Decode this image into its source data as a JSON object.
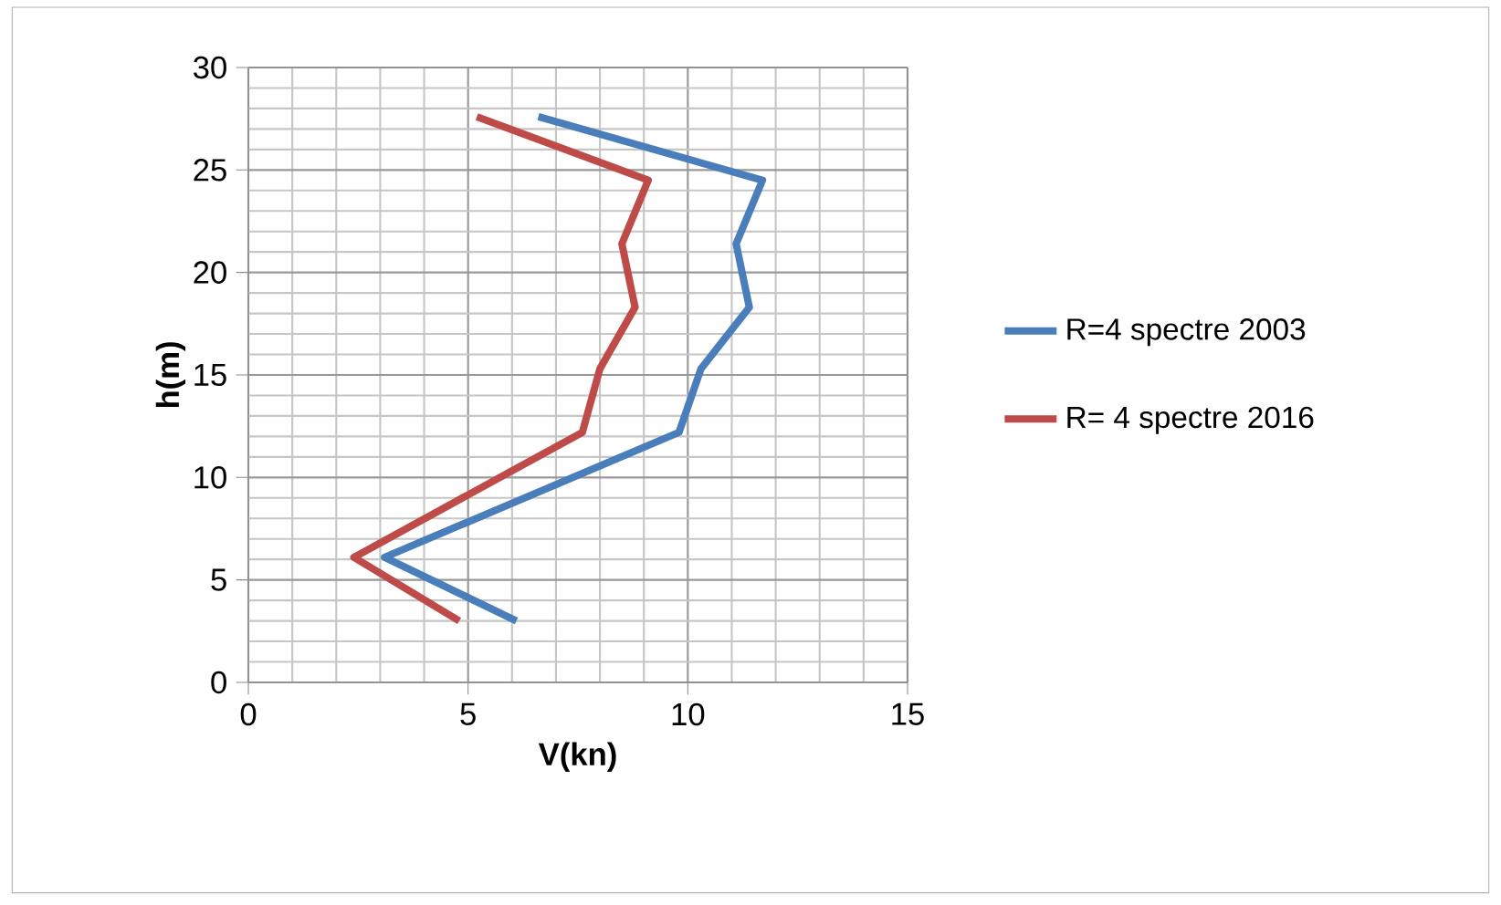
{
  "chart_data": {
    "type": "line",
    "xlabel": "V(kn)",
    "ylabel": "h(m)",
    "xlim": [
      0,
      15
    ],
    "ylim": [
      0,
      30
    ],
    "xticks": [
      0,
      5,
      10,
      15
    ],
    "yticks": [
      0,
      5,
      10,
      15,
      20,
      25,
      30
    ],
    "grid": true,
    "legend": "right",
    "marker": "none",
    "line_style": "solid",
    "series": [
      {
        "name": "R=4 spectre 2003",
        "color": "#4a7ebb",
        "x": [
          6.6,
          11.7,
          11.1,
          11.4,
          10.3,
          9.8,
          3.1,
          6.1
        ],
        "values": [
          27.6,
          24.5,
          21.4,
          18.3,
          15.3,
          12.2,
          6.1,
          3.0
        ]
      },
      {
        "name": "R= 4 spectre 2016",
        "color": "#be4b48",
        "x": [
          5.2,
          9.1,
          8.5,
          8.8,
          8.0,
          7.6,
          2.4,
          4.8
        ],
        "values": [
          27.6,
          24.5,
          21.4,
          18.3,
          15.3,
          12.2,
          6.1,
          3.0
        ]
      }
    ]
  }
}
